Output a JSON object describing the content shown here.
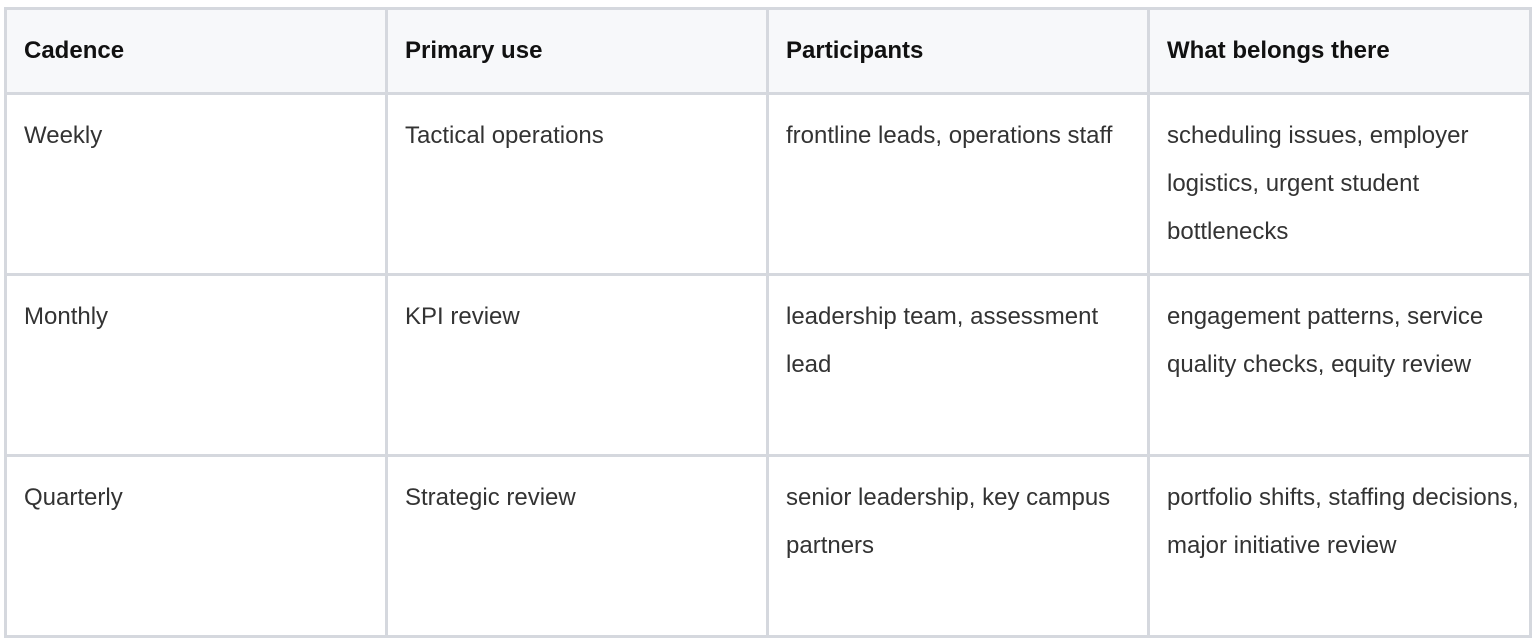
{
  "table": {
    "headers": [
      "Cadence",
      "Primary use",
      "Participants",
      "What belongs there"
    ],
    "rows": [
      [
        "Weekly",
        "Tactical operations",
        "frontline leads, operations staff",
        "scheduling issues, employer logistics, urgent student bottlenecks"
      ],
      [
        "Monthly",
        "KPI review",
        "leadership team, assessment lead",
        "engagement patterns, service quality checks, equity review"
      ],
      [
        "Quarterly",
        "Strategic review",
        "senior leadership, key campus partners",
        "portfolio shifts, staffing decisions, major initiative review"
      ]
    ]
  }
}
